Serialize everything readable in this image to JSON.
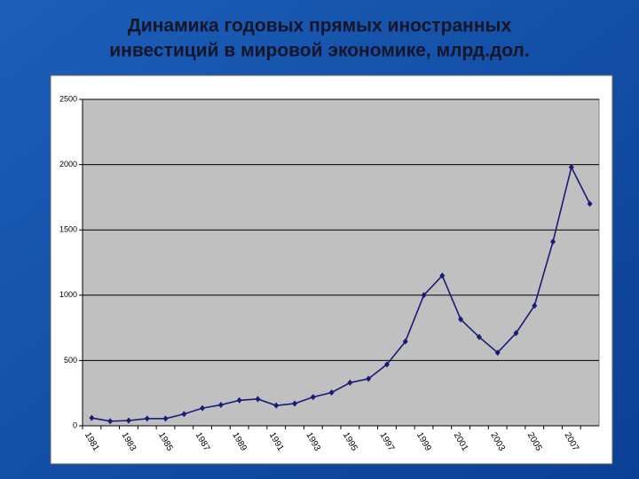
{
  "chart_data": {
    "type": "line",
    "title": [
      "Динамика годовых прямых иностранных",
      "инвестиций  в мировой экономике, млрд.дол."
    ],
    "categories": [
      "1981",
      null,
      "1983",
      null,
      "1985",
      null,
      "1987",
      null,
      "1989",
      null,
      "1991",
      null,
      "1993",
      null,
      "1995",
      null,
      "1997",
      null,
      "1999",
      null,
      "2001",
      null,
      "2003",
      null,
      "2005",
      null,
      "2007",
      null
    ],
    "series": [
      {
        "color": "#1a1a78",
        "values": [
          60,
          35,
          40,
          55,
          55,
          90,
          135,
          160,
          195,
          205,
          155,
          170,
          220,
          255,
          330,
          360,
          470,
          645,
          1000,
          1150,
          815,
          680,
          560,
          710,
          920,
          1410,
          1980,
          1700
        ]
      }
    ],
    "ylim": [
      0,
      2500
    ],
    "yticks": [
      0,
      500,
      1000,
      1500,
      2000,
      2500
    ],
    "grid": true
  }
}
